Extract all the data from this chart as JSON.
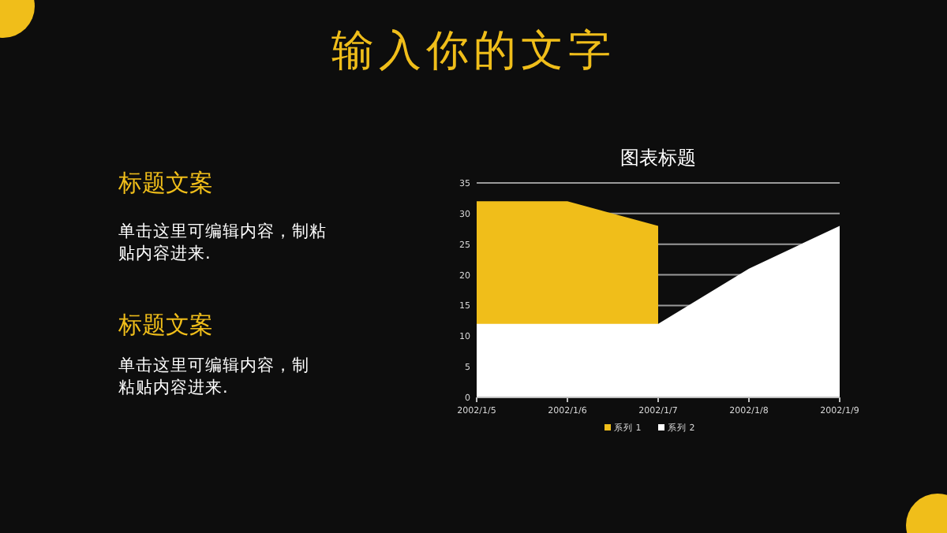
{
  "chart_data": [
    {
      "type": "other",
      "title": "输入你的文字",
      "annotations": [
        "标题文案",
        "单击这里可编辑内容，制粘",
        "贴内容进来.",
        "标题文案",
        "单击这里可编辑内容，制",
        "粘贴内容进来."
      ]
    },
    {
      "type": "area",
      "title": "图表标题",
      "categories": [
        "2002/1/5",
        "2002/1/6",
        "2002/1/7",
        "2002/1/8",
        "2002/1/9"
      ],
      "series": [
        {
          "name": "系列 1",
          "color": "#f0be1a",
          "values": [
            32,
            32,
            28,
            null,
            null
          ]
        },
        {
          "name": "系列 2",
          "color": "#ffffff",
          "values": [
            12,
            12,
            12,
            21,
            28
          ]
        }
      ],
      "ylim": [
        0,
        35
      ],
      "yticks": [
        0,
        5,
        10,
        15,
        20,
        25,
        30,
        35
      ],
      "grid": "y",
      "legend": "bottom"
    }
  ]
}
